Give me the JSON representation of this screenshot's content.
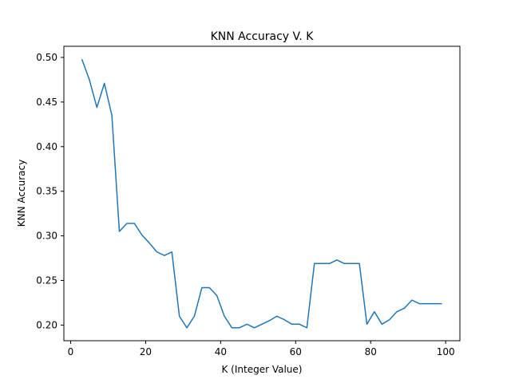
{
  "chart_data": {
    "type": "line",
    "title": "KNN Accuracy V. K",
    "xlabel": "K (Integer Value)",
    "ylabel": "KNN Accuracy",
    "xlim": [
      -1.8,
      103.8
    ],
    "ylim": [
      0.1825,
      0.5125
    ],
    "xticks": [
      0,
      20,
      40,
      60,
      80,
      100
    ],
    "yticks": [
      0.2,
      0.25,
      0.3,
      0.35,
      0.4,
      0.45,
      0.5
    ],
    "xtick_labels": [
      "0",
      "20",
      "40",
      "60",
      "80",
      "100"
    ],
    "ytick_labels": [
      "0.20",
      "0.25",
      "0.30",
      "0.35",
      "0.40",
      "0.45",
      "0.50"
    ],
    "grid": false,
    "series": [
      {
        "color": "#1f77b4",
        "x": [
          3,
          5,
          7,
          9,
          11,
          13,
          15,
          17,
          19,
          21,
          23,
          25,
          27,
          29,
          31,
          33,
          35,
          37,
          39,
          41,
          43,
          45,
          47,
          49,
          51,
          53,
          55,
          57,
          59,
          61,
          63,
          65,
          67,
          69,
          71,
          73,
          75,
          77,
          79,
          81,
          83,
          85,
          87,
          89,
          91,
          93,
          95,
          97,
          99
        ],
        "y": [
          0.498,
          0.475,
          0.444,
          0.471,
          0.435,
          0.305,
          0.314,
          0.314,
          0.301,
          0.292,
          0.282,
          0.278,
          0.282,
          0.21,
          0.197,
          0.21,
          0.242,
          0.242,
          0.233,
          0.21,
          0.197,
          0.197,
          0.201,
          0.197,
          0.201,
          0.205,
          0.21,
          0.206,
          0.201,
          0.201,
          0.197,
          0.269,
          0.269,
          0.269,
          0.273,
          0.269,
          0.269,
          0.269,
          0.201,
          0.215,
          0.201,
          0.206,
          0.215,
          0.219,
          0.228,
          0.224,
          0.224,
          0.224,
          0.224
        ]
      }
    ]
  }
}
